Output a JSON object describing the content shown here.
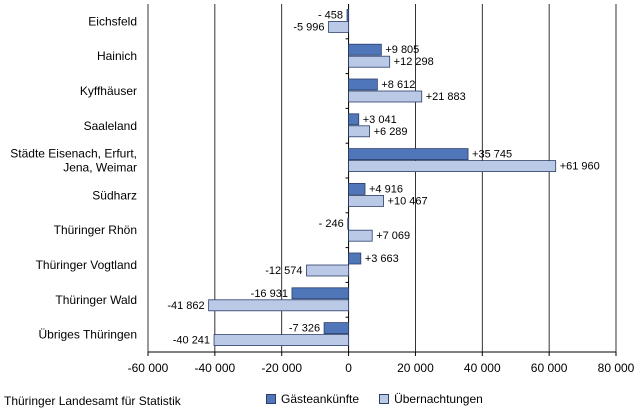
{
  "chart_data": {
    "type": "bar",
    "orientation": "horizontal",
    "categories": [
      "Eichsfeld",
      "Hainich",
      "Kyffhäuser",
      "Saaleland",
      "Städte Eisenach, Erfurt,\nJena, Weimar",
      "Südharz",
      "Thüringer Rhön",
      "Thüringer Vogtland",
      "Thüringer Wald",
      "Übriges Thüringen"
    ],
    "series": [
      {
        "name": "Gästeankünfte",
        "color": "#4f76b8",
        "values": [
          -458,
          9805,
          8612,
          3041,
          35745,
          4916,
          -246,
          3663,
          -16931,
          -7326
        ],
        "labels": [
          "- 458",
          "+9 805",
          "+8 612",
          "+3 041",
          "+35 745",
          "+4 916",
          "- 246",
          "+3 663",
          "-16 931",
          "-7 326"
        ]
      },
      {
        "name": "Übernachtungen",
        "color": "#b9c9e6",
        "values": [
          -5996,
          12298,
          21883,
          6289,
          61960,
          10467,
          7069,
          -12574,
          -41862,
          -40241
        ],
        "labels": [
          "-5 996",
          "+12 298",
          "+21 883",
          "+6 289",
          "+61 960",
          "+10 467",
          "+7 069",
          "-12 574",
          "-41 862",
          "-40 241"
        ]
      }
    ],
    "xlim": [
      -60000,
      80000
    ],
    "xticks": [
      -60000,
      -40000,
      -20000,
      0,
      20000,
      40000,
      60000,
      80000
    ],
    "xtick_labels": [
      "-60 000",
      "-40 000",
      "-20 000",
      "0",
      "20 000",
      "40 000",
      "60 000",
      "80 000"
    ],
    "grid": "vertical",
    "legend_position": "bottom",
    "title": "",
    "xlabel": "",
    "ylabel": ""
  },
  "footer": {
    "source": "Thüringer Landesamt für Statistik"
  },
  "legend": {
    "item1": "Gästeankünfte",
    "item2": "Übernachtungen"
  }
}
